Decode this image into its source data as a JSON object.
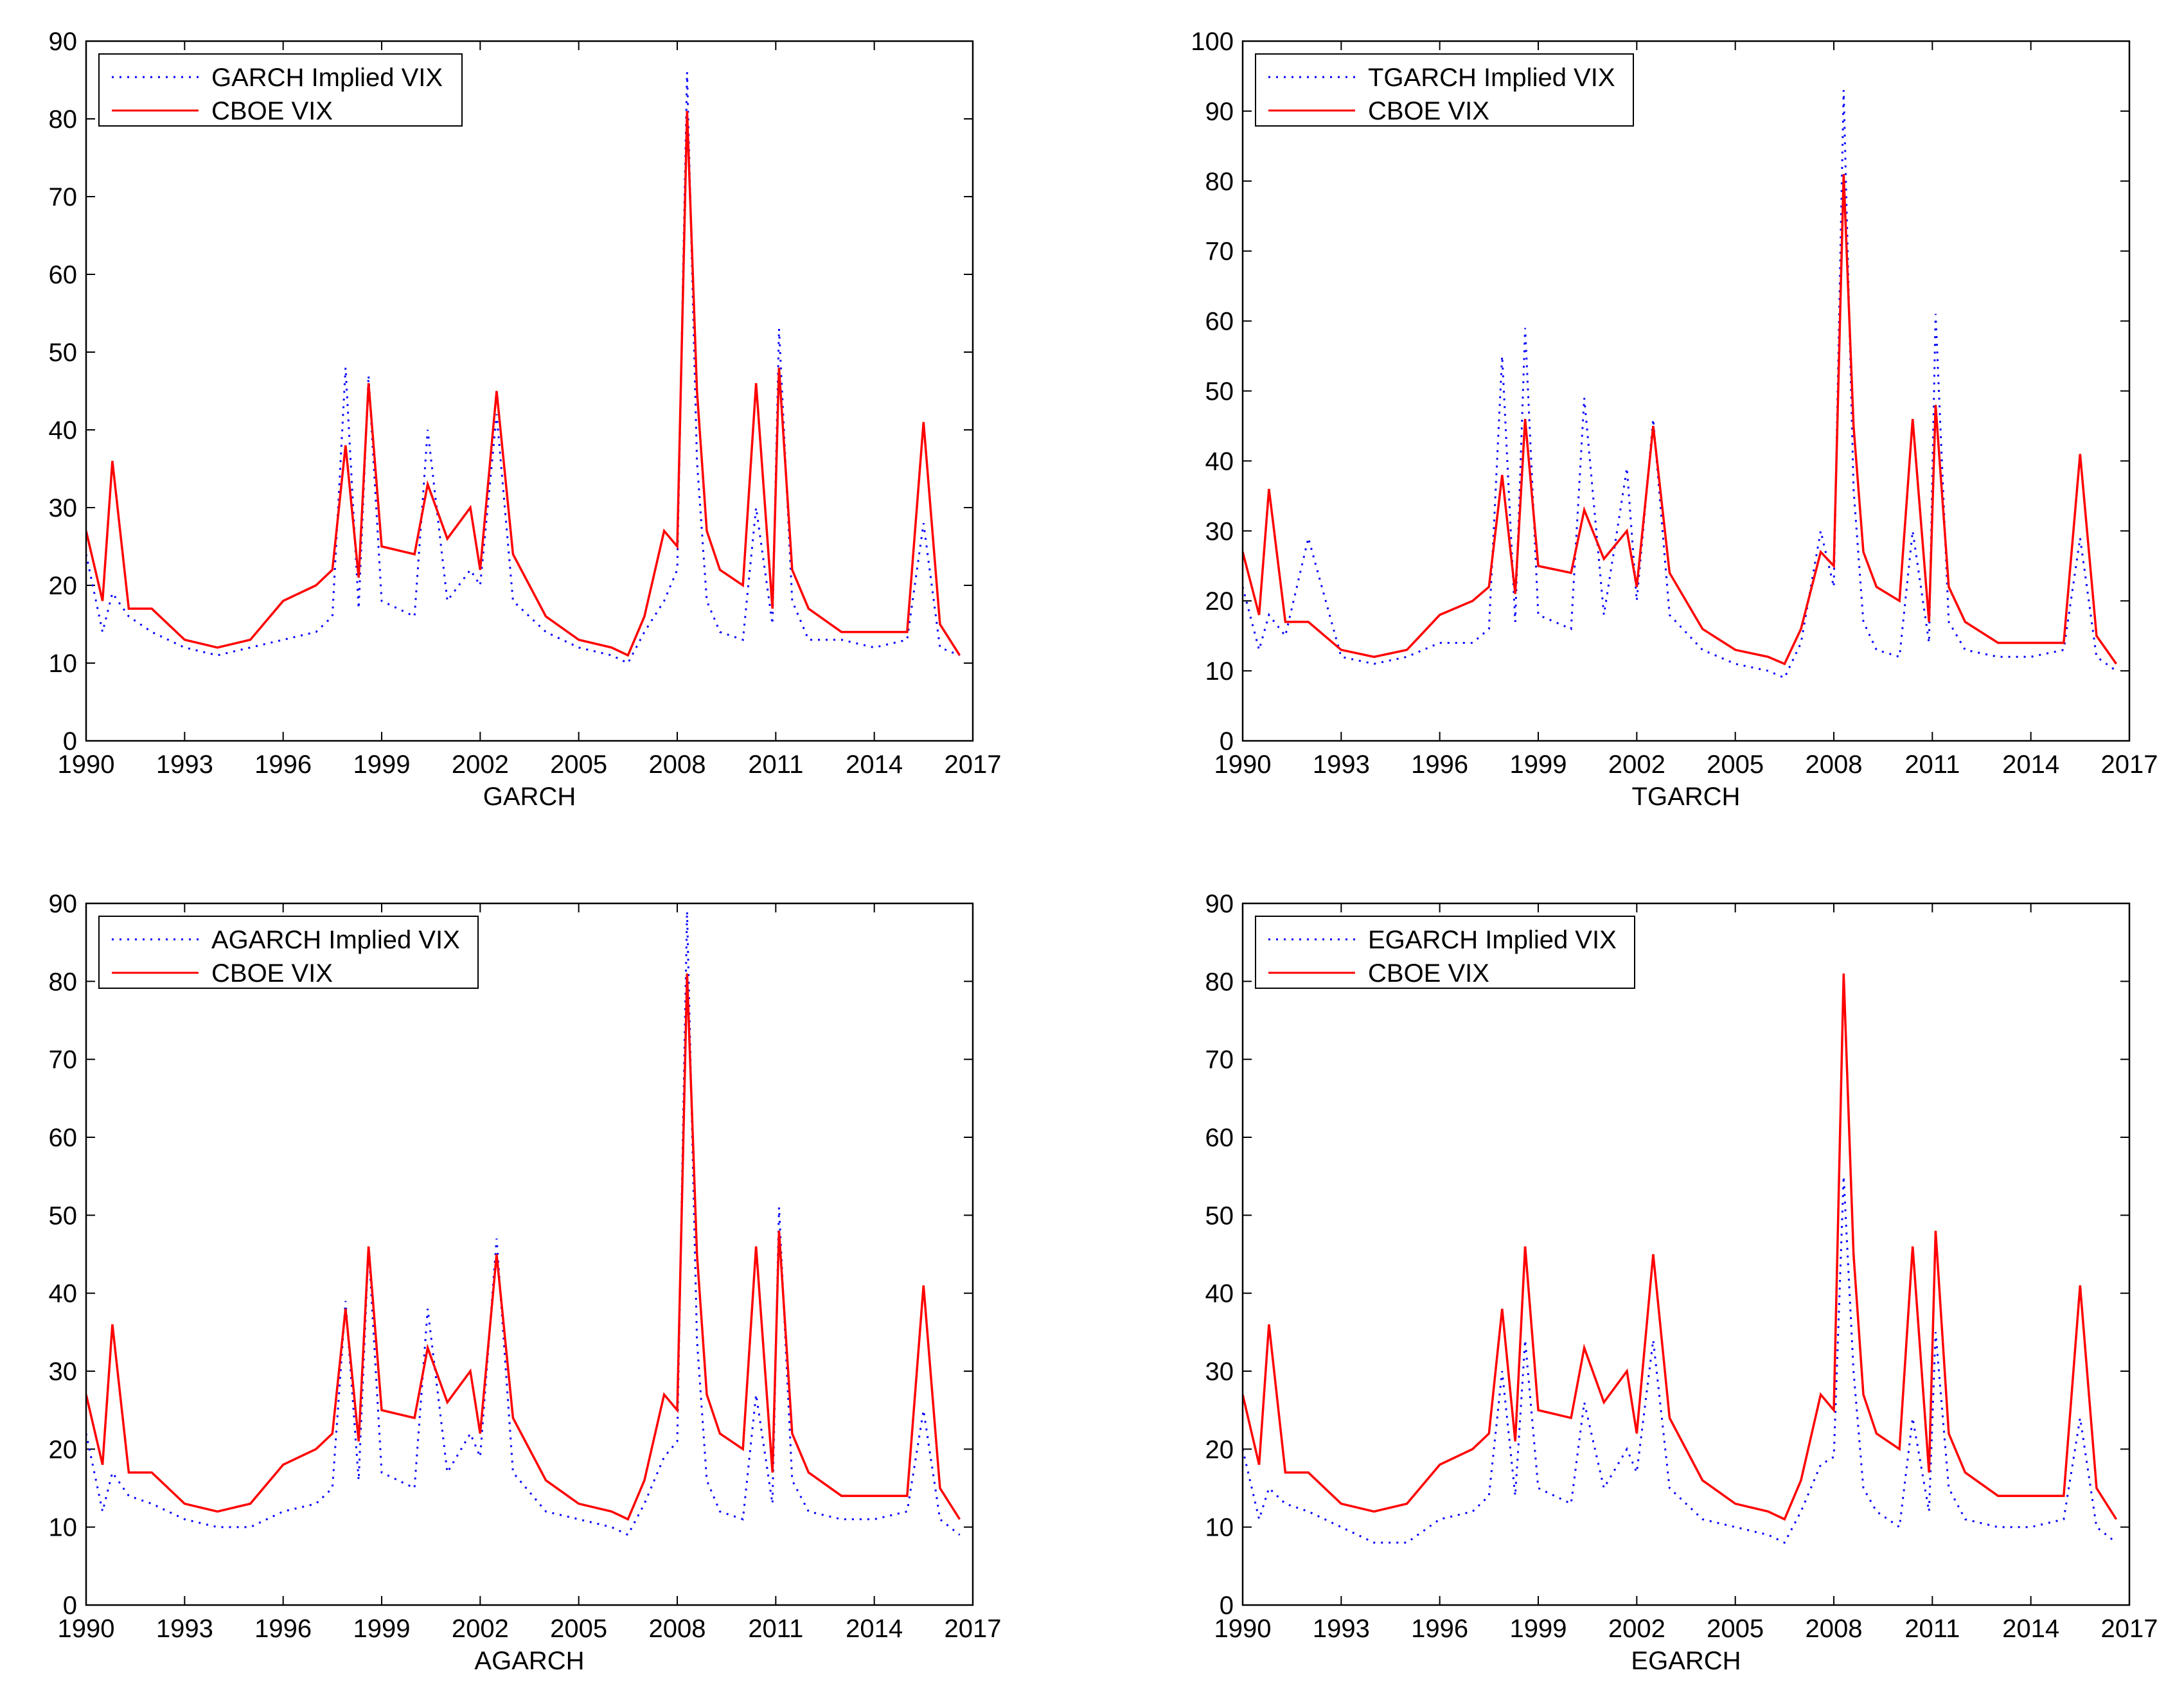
{
  "chart_data": [
    {
      "type": "line",
      "xlabel": "GARCH",
      "xlim": [
        1990,
        2017
      ],
      "ylim": [
        0,
        90
      ],
      "xticks": [
        "1990",
        "1993",
        "1996",
        "1999",
        "2002",
        "2005",
        "2008",
        "2011",
        "2014",
        "2017"
      ],
      "yticks": [
        "0",
        "10",
        "20",
        "30",
        "40",
        "50",
        "60",
        "70",
        "80",
        "90"
      ],
      "legend": {
        "position": "top-left",
        "entries": [
          "GARCH Implied VIX",
          "CBOE VIX"
        ]
      },
      "series": [
        {
          "name": "GARCH Implied VIX",
          "color": "#0000ff",
          "style": "dotted",
          "x": [
            1990,
            1990.5,
            1990.8,
            1991.3,
            1992,
            1993,
            1994,
            1995,
            1996,
            1997,
            1997.5,
            1997.9,
            1998.3,
            1998.6,
            1999,
            2000,
            2000.4,
            2001,
            2001.7,
            2002,
            2002.5,
            2003,
            2004,
            2005,
            2006,
            2006.5,
            2007,
            2007.6,
            2008,
            2008.3,
            2008.6,
            2008.9,
            2009.3,
            2010,
            2010.4,
            2010.9,
            2011.1,
            2011.5,
            2012,
            2013,
            2014,
            2015,
            2015.5,
            2016,
            2016.6
          ],
          "values": [
            24,
            14,
            19,
            16,
            14,
            12,
            11,
            12,
            13,
            14,
            16,
            48,
            17,
            47,
            18,
            16,
            40,
            18,
            22,
            20,
            42,
            18,
            14,
            12,
            11,
            10,
            14,
            18,
            22,
            86,
            36,
            18,
            14,
            13,
            30,
            15,
            53,
            18,
            13,
            13,
            12,
            13,
            28,
            12,
            11
          ]
        },
        {
          "name": "CBOE VIX",
          "color": "#ff0000",
          "style": "solid",
          "x": [
            1990,
            1990.5,
            1990.8,
            1991.3,
            1992,
            1993,
            1994,
            1995,
            1996,
            1997,
            1997.5,
            1997.9,
            1998.3,
            1998.6,
            1999,
            2000,
            2000.4,
            2001,
            2001.7,
            2002,
            2002.5,
            2003,
            2004,
            2005,
            2006,
            2006.5,
            2007,
            2007.6,
            2008,
            2008.3,
            2008.6,
            2008.9,
            2009.3,
            2010,
            2010.4,
            2010.9,
            2011.1,
            2011.5,
            2012,
            2013,
            2014,
            2015,
            2015.5,
            2016,
            2016.6
          ],
          "values": [
            27,
            18,
            36,
            17,
            17,
            13,
            12,
            13,
            18,
            20,
            22,
            38,
            21,
            46,
            25,
            24,
            33,
            26,
            30,
            22,
            45,
            24,
            16,
            13,
            12,
            11,
            16,
            27,
            25,
            81,
            45,
            27,
            22,
            20,
            46,
            17,
            48,
            22,
            17,
            14,
            14,
            14,
            41,
            15,
            11
          ]
        }
      ]
    },
    {
      "type": "line",
      "xlabel": "TGARCH",
      "xlim": [
        1990,
        2017
      ],
      "ylim": [
        0,
        100
      ],
      "xticks": [
        "1990",
        "1993",
        "1996",
        "1999",
        "2002",
        "2005",
        "2008",
        "2011",
        "2014",
        "2017"
      ],
      "yticks": [
        "0",
        "10",
        "20",
        "30",
        "40",
        "50",
        "60",
        "70",
        "80",
        "90",
        "100"
      ],
      "legend": {
        "position": "top-left",
        "entries": [
          "TGARCH Implied VIX",
          "CBOE VIX"
        ]
      },
      "series": [
        {
          "name": "TGARCH Implied VIX",
          "color": "#0000ff",
          "style": "dotted",
          "x": [
            1990,
            1990.5,
            1990.8,
            1991.3,
            1992,
            1993,
            1994,
            1995,
            1996,
            1997,
            1997.5,
            1997.9,
            1998.3,
            1998.6,
            1999,
            2000,
            2000.4,
            2001,
            2001.7,
            2002,
            2002.5,
            2003,
            2004,
            2005,
            2006,
            2006.5,
            2007,
            2007.6,
            2008,
            2008.3,
            2008.6,
            2008.9,
            2009.3,
            2010,
            2010.4,
            2010.9,
            2011.1,
            2011.5,
            2012,
            2013,
            2014,
            2015,
            2015.5,
            2016,
            2016.6
          ],
          "values": [
            22,
            13,
            18,
            15,
            29,
            12,
            11,
            12,
            14,
            14,
            16,
            55,
            17,
            59,
            18,
            16,
            49,
            18,
            39,
            20,
            46,
            18,
            13,
            11,
            10,
            9,
            14,
            30,
            22,
            93,
            36,
            17,
            13,
            12,
            30,
            14,
            61,
            17,
            13,
            12,
            12,
            13,
            29,
            12,
            10
          ]
        },
        {
          "name": "CBOE VIX",
          "color": "#ff0000",
          "style": "solid",
          "x": [
            1990,
            1990.5,
            1990.8,
            1991.3,
            1992,
            1993,
            1994,
            1995,
            1996,
            1997,
            1997.5,
            1997.9,
            1998.3,
            1998.6,
            1999,
            2000,
            2000.4,
            2001,
            2001.7,
            2002,
            2002.5,
            2003,
            2004,
            2005,
            2006,
            2006.5,
            2007,
            2007.6,
            2008,
            2008.3,
            2008.6,
            2008.9,
            2009.3,
            2010,
            2010.4,
            2010.9,
            2011.1,
            2011.5,
            2012,
            2013,
            2014,
            2015,
            2015.5,
            2016,
            2016.6
          ],
          "values": [
            27,
            18,
            36,
            17,
            17,
            13,
            12,
            13,
            18,
            20,
            22,
            38,
            21,
            46,
            25,
            24,
            33,
            26,
            30,
            22,
            45,
            24,
            16,
            13,
            12,
            11,
            16,
            27,
            25,
            81,
            45,
            27,
            22,
            20,
            46,
            17,
            48,
            22,
            17,
            14,
            14,
            14,
            41,
            15,
            11
          ]
        }
      ]
    },
    {
      "type": "line",
      "xlabel": "AGARCH",
      "xlim": [
        1990,
        2017
      ],
      "ylim": [
        0,
        90
      ],
      "xticks": [
        "1990",
        "1993",
        "1996",
        "1999",
        "2002",
        "2005",
        "2008",
        "2011",
        "2014",
        "2017"
      ],
      "yticks": [
        "0",
        "10",
        "20",
        "30",
        "40",
        "50",
        "60",
        "70",
        "80",
        "90"
      ],
      "legend": {
        "position": "top-left",
        "entries": [
          "AGARCH Implied VIX",
          "CBOE VIX"
        ]
      },
      "series": [
        {
          "name": "AGARCH Implied VIX",
          "color": "#0000ff",
          "style": "dotted",
          "x": [
            1990,
            1990.5,
            1990.8,
            1991.3,
            1992,
            1993,
            1994,
            1995,
            1996,
            1997,
            1997.5,
            1997.9,
            1998.3,
            1998.6,
            1999,
            2000,
            2000.4,
            2001,
            2001.7,
            2002,
            2002.5,
            2003,
            2004,
            2005,
            2006,
            2006.5,
            2007,
            2007.6,
            2008,
            2008.3,
            2008.6,
            2008.9,
            2009.3,
            2010,
            2010.4,
            2010.9,
            2011.1,
            2011.5,
            2012,
            2013,
            2014,
            2015,
            2015.5,
            2016,
            2016.6
          ],
          "values": [
            22,
            12,
            17,
            14,
            13,
            11,
            10,
            10,
            12,
            13,
            15,
            39,
            16,
            46,
            17,
            15,
            38,
            17,
            22,
            19,
            47,
            17,
            12,
            11,
            10,
            9,
            13,
            19,
            21,
            89,
            34,
            16,
            12,
            11,
            27,
            13,
            51,
            16,
            12,
            11,
            11,
            12,
            25,
            11,
            9
          ]
        },
        {
          "name": "CBOE VIX",
          "color": "#ff0000",
          "style": "solid",
          "x": [
            1990,
            1990.5,
            1990.8,
            1991.3,
            1992,
            1993,
            1994,
            1995,
            1996,
            1997,
            1997.5,
            1997.9,
            1998.3,
            1998.6,
            1999,
            2000,
            2000.4,
            2001,
            2001.7,
            2002,
            2002.5,
            2003,
            2004,
            2005,
            2006,
            2006.5,
            2007,
            2007.6,
            2008,
            2008.3,
            2008.6,
            2008.9,
            2009.3,
            2010,
            2010.4,
            2010.9,
            2011.1,
            2011.5,
            2012,
            2013,
            2014,
            2015,
            2015.5,
            2016,
            2016.6
          ],
          "values": [
            27,
            18,
            36,
            17,
            17,
            13,
            12,
            13,
            18,
            20,
            22,
            38,
            21,
            46,
            25,
            24,
            33,
            26,
            30,
            22,
            45,
            24,
            16,
            13,
            12,
            11,
            16,
            27,
            25,
            81,
            45,
            27,
            22,
            20,
            46,
            17,
            48,
            22,
            17,
            14,
            14,
            14,
            41,
            15,
            11
          ]
        }
      ]
    },
    {
      "type": "line",
      "xlabel": "EGARCH",
      "xlim": [
        1990,
        2017
      ],
      "ylim": [
        0,
        90
      ],
      "xticks": [
        "1990",
        "1993",
        "1996",
        "1999",
        "2002",
        "2005",
        "2008",
        "2011",
        "2014",
        "2017"
      ],
      "yticks": [
        "0",
        "10",
        "20",
        "30",
        "40",
        "50",
        "60",
        "70",
        "80",
        "90"
      ],
      "legend": {
        "position": "top-left",
        "entries": [
          "EGARCH Implied VIX",
          "CBOE VIX"
        ]
      },
      "series": [
        {
          "name": "EGARCH Implied VIX",
          "color": "#0000ff",
          "style": "dotted",
          "x": [
            1990,
            1990.5,
            1990.8,
            1991.3,
            1992,
            1993,
            1994,
            1995,
            1996,
            1997,
            1997.5,
            1997.9,
            1998.3,
            1998.6,
            1999,
            2000,
            2000.4,
            2001,
            2001.7,
            2002,
            2002.5,
            2003,
            2004,
            2005,
            2006,
            2006.5,
            2007,
            2007.6,
            2008,
            2008.3,
            2008.6,
            2008.9,
            2009.3,
            2010,
            2010.4,
            2010.9,
            2011.1,
            2011.5,
            2012,
            2013,
            2014,
            2015,
            2015.5,
            2016,
            2016.6
          ],
          "values": [
            20,
            11,
            15,
            13,
            12,
            10,
            8,
            8,
            11,
            12,
            14,
            30,
            14,
            34,
            15,
            13,
            26,
            15,
            20,
            17,
            34,
            15,
            11,
            10,
            9,
            8,
            12,
            18,
            19,
            55,
            30,
            15,
            12,
            10,
            24,
            12,
            35,
            15,
            11,
            10,
            10,
            11,
            24,
            10,
            8
          ]
        },
        {
          "name": "CBOE VIX",
          "color": "#ff0000",
          "style": "solid",
          "x": [
            1990,
            1990.5,
            1990.8,
            1991.3,
            1992,
            1993,
            1994,
            1995,
            1996,
            1997,
            1997.5,
            1997.9,
            1998.3,
            1998.6,
            1999,
            2000,
            2000.4,
            2001,
            2001.7,
            2002,
            2002.5,
            2003,
            2004,
            2005,
            2006,
            2006.5,
            2007,
            2007.6,
            2008,
            2008.3,
            2008.6,
            2008.9,
            2009.3,
            2010,
            2010.4,
            2010.9,
            2011.1,
            2011.5,
            2012,
            2013,
            2014,
            2015,
            2015.5,
            2016,
            2016.6
          ],
          "values": [
            27,
            18,
            36,
            17,
            17,
            13,
            12,
            13,
            18,
            20,
            22,
            38,
            21,
            46,
            25,
            24,
            33,
            26,
            30,
            22,
            45,
            24,
            16,
            13,
            12,
            11,
            16,
            27,
            25,
            81,
            45,
            27,
            22,
            20,
            46,
            17,
            48,
            22,
            17,
            14,
            14,
            14,
            41,
            15,
            11
          ]
        }
      ]
    }
  ]
}
